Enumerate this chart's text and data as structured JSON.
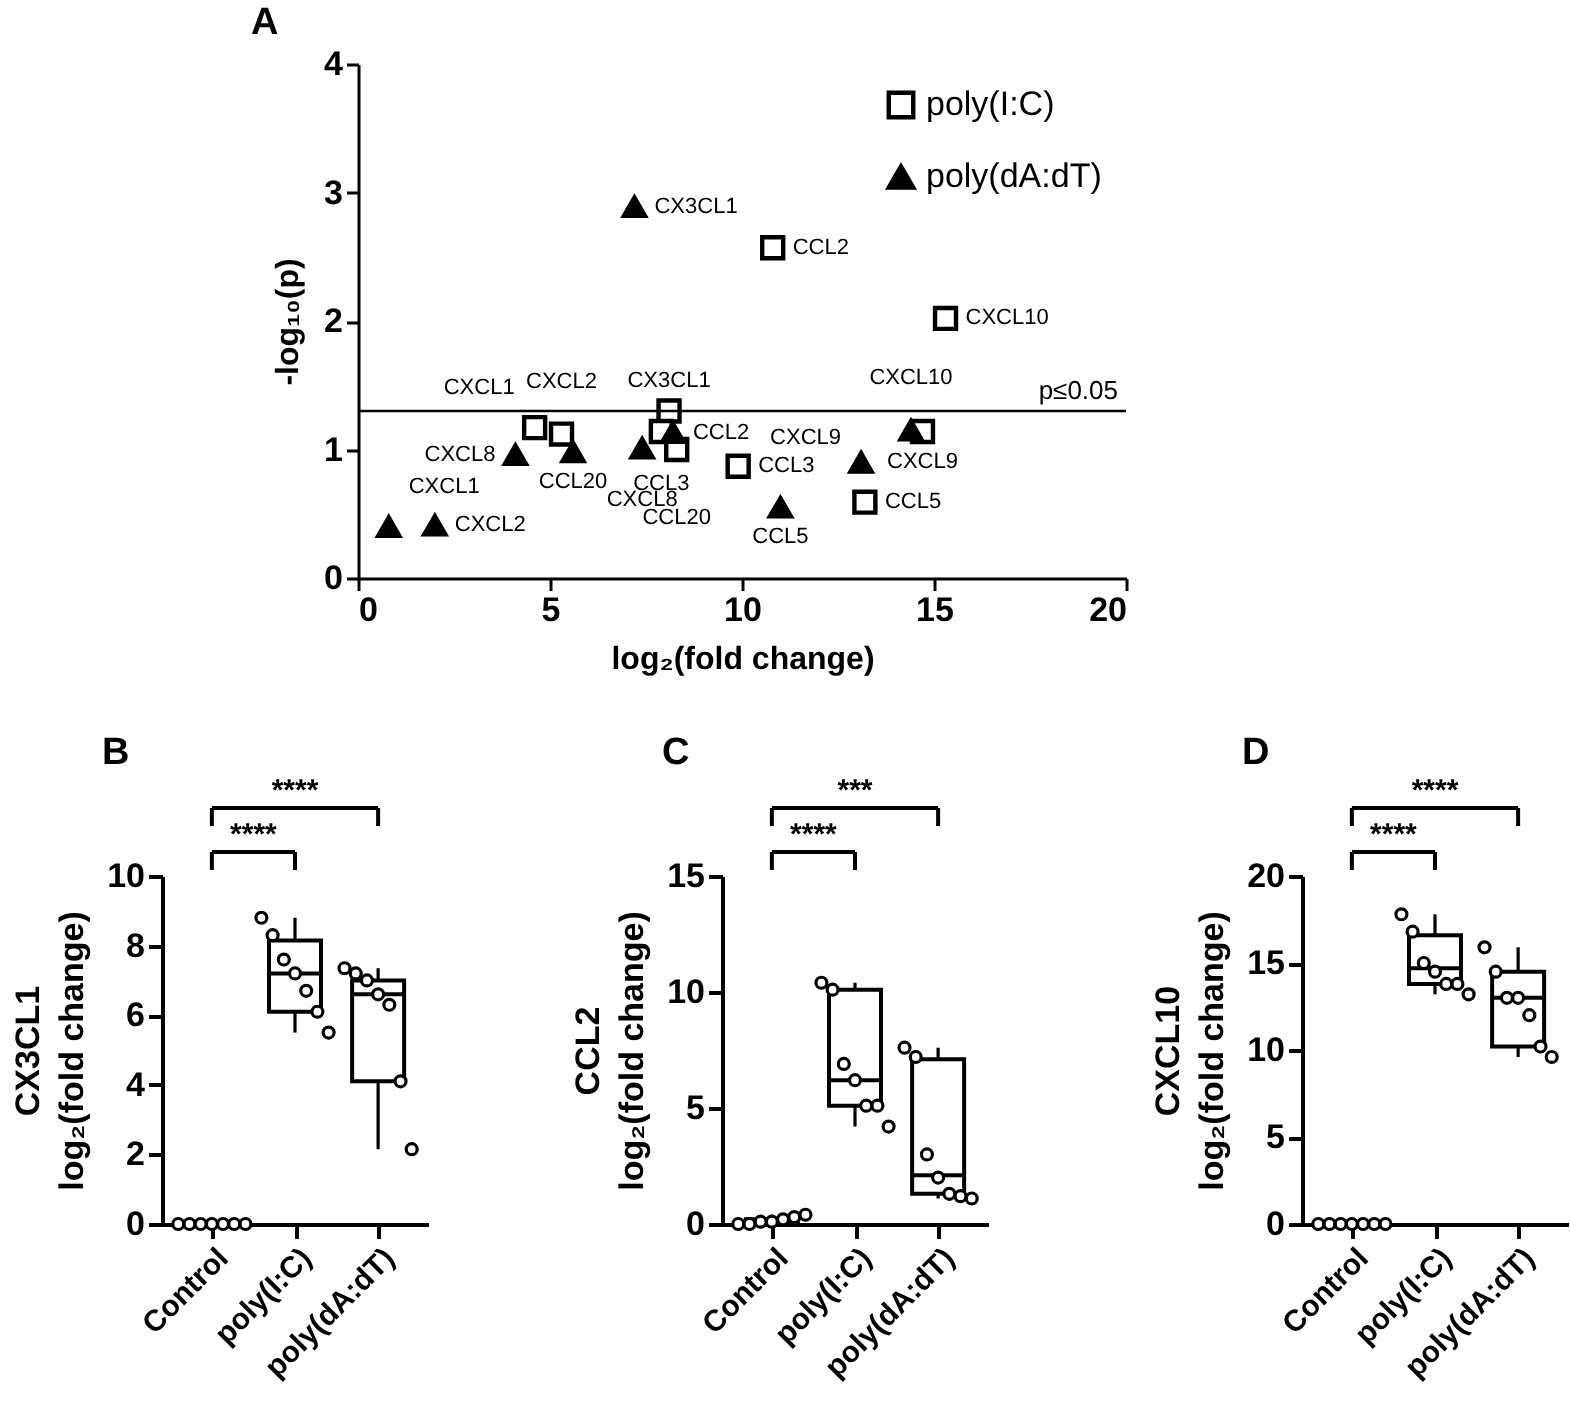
{
  "chart_data": [
    {
      "type": "scatter",
      "title": "A",
      "xlabel": "log₂(fold change)",
      "ylabel": "-log₁₀(p)",
      "xlim": [
        0,
        20
      ],
      "xticks": [
        0,
        5,
        10,
        15,
        20
      ],
      "ylim": [
        0,
        4
      ],
      "yticks": [
        0,
        1,
        2,
        3,
        4
      ],
      "legend": "top right",
      "grid": false,
      "series": [
        {
          "name": "poly(I:C)",
          "color": "#000000",
          "marker": "square",
          "x": [
            10.8,
            15.3,
            8.1,
            4.6,
            5.3,
            7.9,
            8.3,
            9.9,
            14.7,
            13.2
          ],
          "values": [
            2.57,
            2.02,
            1.3,
            1.17,
            1.12,
            1.14,
            1.0,
            0.87,
            1.14,
            0.59
          ]
        },
        {
          "name": "poly(dA:dT)",
          "color": "#000000",
          "marker": "triangle",
          "x": [
            7.2,
            0.8,
            2.0,
            4.1,
            5.6,
            8.2,
            7.4,
            11.0,
            13.1,
            14.4
          ],
          "values": [
            2.89,
            0.4,
            0.41,
            0.96,
            0.98,
            1.13,
            1.01,
            0.55,
            0.9,
            1.15
          ]
        }
      ],
      "ref_lines": [
        {
          "axis": "y",
          "value": 1.3,
          "label": "p≤0.05"
        }
      ],
      "annotations": [
        {
          "text": "CCL2",
          "x": 10.8,
          "y": 2.57
        },
        {
          "text": "CXCL10",
          "x": 15.3,
          "y": 2.02
        },
        {
          "text": "CX3CL1",
          "x": 8.1,
          "y": 1.3
        },
        {
          "text": "CXCL1",
          "x": 4.6,
          "y": 1.17
        },
        {
          "text": "CXCL2",
          "x": 5.3,
          "y": 1.12
        },
        {
          "text": "CCL3",
          "x": 7.9,
          "y": 1.14
        },
        {
          "text": "CCL20",
          "x": 8.3,
          "y": 1.0
        },
        {
          "text": "CCL3",
          "x": 9.9,
          "y": 0.87
        },
        {
          "text": "CXCL9",
          "x": 14.7,
          "y": 1.14
        },
        {
          "text": "CCL5",
          "x": 13.2,
          "y": 0.59
        },
        {
          "text": "CX3CL1",
          "x": 7.2,
          "y": 2.89
        },
        {
          "text": "CXCL1",
          "x": 0.8,
          "y": 0.4
        },
        {
          "text": "CXCL2",
          "x": 2.0,
          "y": 0.41
        },
        {
          "text": "CXCL8",
          "x": 4.1,
          "y": 0.96
        },
        {
          "text": "CCL20",
          "x": 5.6,
          "y": 0.98
        },
        {
          "text": "CCL2",
          "x": 8.2,
          "y": 1.13
        },
        {
          "text": "CXCL8",
          "x": 7.4,
          "y": 1.01
        },
        {
          "text": "CCL5",
          "x": 11.0,
          "y": 0.55
        },
        {
          "text": "CXCL9",
          "x": 13.1,
          "y": 0.9
        },
        {
          "text": "CXCL10",
          "x": 14.4,
          "y": 1.15
        }
      ]
    },
    {
      "type": "box",
      "title": "B",
      "ylabel": "CX3CL1\nlog₂(fold change)",
      "categories": [
        "Control",
        "poly(I:C)",
        "poly(dA:dT)"
      ],
      "ylim": [
        0,
        10
      ],
      "yticks": [
        0,
        2,
        4,
        6,
        8,
        10
      ],
      "grid": false,
      "marker": "circle",
      "boxes": [
        {
          "low": 0,
          "q1": 0,
          "median": 0,
          "q3": 0,
          "high": 0
        },
        {
          "low": 5.5,
          "q1": 6.1,
          "median": 7.2,
          "q3": 8.15,
          "high": 8.8
        },
        {
          "low": 2.15,
          "q1": 4.1,
          "median": 6.6,
          "q3": 7.0,
          "high": 7.35
        }
      ],
      "series": [
        {
          "type": "scatter",
          "color": "#000000",
          "x": [
            "Control",
            "Control",
            "Control",
            "Control",
            "Control",
            "Control",
            "Control",
            "poly(I:C)",
            "poly(I:C)",
            "poly(I:C)",
            "poly(I:C)",
            "poly(I:C)",
            "poly(I:C)",
            "poly(I:C)",
            "poly(dA:dT)",
            "poly(dA:dT)",
            "poly(dA:dT)",
            "poly(dA:dT)",
            "poly(dA:dT)",
            "poly(dA:dT)",
            "poly(dA:dT)"
          ],
          "values": [
            0,
            0,
            0,
            0,
            0,
            0,
            0,
            8.8,
            8.3,
            7.6,
            7.2,
            6.7,
            6.1,
            5.5,
            7.35,
            7.2,
            7.0,
            6.6,
            6.3,
            4.1,
            2.15
          ]
        }
      ],
      "annotations": [
        "****",
        "****"
      ]
    },
    {
      "type": "box",
      "title": "C",
      "ylabel": "CCL2\nlog₂(fold change)",
      "categories": [
        "Control",
        "poly(I:C)",
        "poly(dA:dT)"
      ],
      "ylim": [
        0,
        15
      ],
      "yticks": [
        0,
        5,
        10,
        15
      ],
      "grid": false,
      "marker": "circle",
      "boxes": [
        {
          "low": 0,
          "q1": 0,
          "median": 0.1,
          "q3": 0.2,
          "high": 0.4
        },
        {
          "low": 4.2,
          "q1": 5.1,
          "median": 6.2,
          "q3": 10.1,
          "high": 10.4
        },
        {
          "low": 1.1,
          "q1": 1.3,
          "median": 2.1,
          "q3": 7.1,
          "high": 7.6
        }
      ],
      "series": [
        {
          "type": "scatter",
          "color": "#000000",
          "x": [
            "Control",
            "Control",
            "Control",
            "Control",
            "Control",
            "Control",
            "Control",
            "poly(I:C)",
            "poly(I:C)",
            "poly(I:C)",
            "poly(I:C)",
            "poly(I:C)",
            "poly(I:C)",
            "poly(I:C)",
            "poly(dA:dT)",
            "poly(dA:dT)",
            "poly(dA:dT)",
            "poly(dA:dT)",
            "poly(dA:dT)",
            "poly(dA:dT)",
            "poly(dA:dT)"
          ],
          "values": [
            0,
            0,
            0.1,
            0.1,
            0.2,
            0.3,
            0.4,
            10.4,
            10.1,
            6.9,
            6.2,
            5.1,
            5.1,
            4.2,
            7.6,
            7.2,
            3.0,
            2.0,
            1.3,
            1.2,
            1.1
          ]
        }
      ],
      "annotations": [
        "****",
        "***"
      ]
    },
    {
      "type": "box",
      "title": "D",
      "ylabel": "CXCL10\nlog₂(fold change)",
      "categories": [
        "Control",
        "poly(I:C)",
        "poly(dA:dT)"
      ],
      "ylim": [
        0,
        20
      ],
      "yticks": [
        0,
        5,
        10,
        15,
        20
      ],
      "grid": false,
      "marker": "circle",
      "boxes": [
        {
          "low": 0,
          "q1": 0,
          "median": 0,
          "q3": 0,
          "high": 0
        },
        {
          "low": 13.2,
          "q1": 13.8,
          "median": 14.7,
          "q3": 16.6,
          "high": 17.8
        },
        {
          "low": 9.6,
          "q1": 10.2,
          "median": 13.0,
          "q3": 14.5,
          "high": 15.9
        }
      ],
      "series": [
        {
          "type": "scatter",
          "color": "#000000",
          "x": [
            "Control",
            "Control",
            "Control",
            "Control",
            "Control",
            "Control",
            "Control",
            "poly(I:C)",
            "poly(I:C)",
            "poly(I:C)",
            "poly(I:C)",
            "poly(I:C)",
            "poly(I:C)",
            "poly(I:C)",
            "poly(dA:dT)",
            "poly(dA:dT)",
            "poly(dA:dT)",
            "poly(dA:dT)",
            "poly(dA:dT)",
            "poly(dA:dT)",
            "poly(dA:dT)"
          ],
          "values": [
            0,
            0,
            0,
            0,
            0,
            0,
            0,
            17.8,
            16.8,
            15.0,
            14.5,
            13.8,
            13.8,
            13.2,
            15.9,
            14.5,
            13.0,
            13.0,
            12.0,
            10.2,
            9.6
          ]
        }
      ],
      "annotations": [
        "****",
        "****"
      ]
    }
  ]
}
